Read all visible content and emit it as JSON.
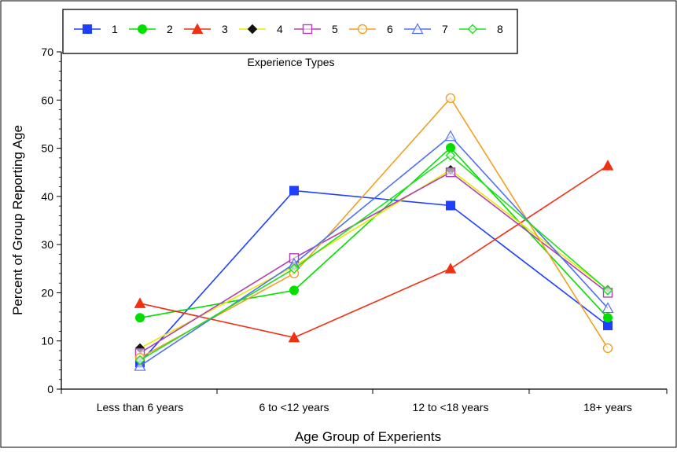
{
  "chart_data": {
    "type": "line",
    "xlabel": "Age Group of Experients",
    "ylabel": "Percent of Group Reporting Age",
    "categories": [
      "Less than 6 years",
      "6 to <12 years",
      "12 to <18 years",
      "18+ years"
    ],
    "ylim": [
      0,
      70
    ],
    "yticks": [
      0,
      10,
      20,
      30,
      40,
      50,
      60,
      70
    ],
    "grid": false,
    "legend": {
      "title": "Experience Types",
      "placement": "top-left"
    },
    "series": [
      {
        "name": "1",
        "values": [
          5.5,
          41.2,
          38.1,
          13.2
        ],
        "color": "#1f3fff",
        "marker": "square-filled"
      },
      {
        "name": "2",
        "values": [
          14.8,
          20.5,
          50.1,
          14.8
        ],
        "color": "#00e000",
        "marker": "circle-filled"
      },
      {
        "name": "3",
        "values": [
          17.8,
          10.7,
          25.0,
          46.4
        ],
        "color": "#f03010",
        "marker": "triangle-filled"
      },
      {
        "name": "4",
        "values": [
          8.5,
          25.5,
          45.5,
          20.6
        ],
        "color": "#e8e800",
        "marker": "diamond-black"
      },
      {
        "name": "5",
        "values": [
          7.5,
          27.2,
          45.0,
          20.0
        ],
        "color": "#b040b0",
        "marker": "square-open"
      },
      {
        "name": "6",
        "values": [
          6.5,
          24.0,
          60.4,
          8.5
        ],
        "color": "#f0a020",
        "marker": "circle-open"
      },
      {
        "name": "7",
        "values": [
          4.8,
          26.0,
          52.5,
          16.8
        ],
        "color": "#5070f0",
        "marker": "triangle-open"
      },
      {
        "name": "8",
        "values": [
          6.0,
          25.0,
          48.5,
          20.5
        ],
        "color": "#20e020",
        "marker": "diamond-open"
      }
    ]
  }
}
